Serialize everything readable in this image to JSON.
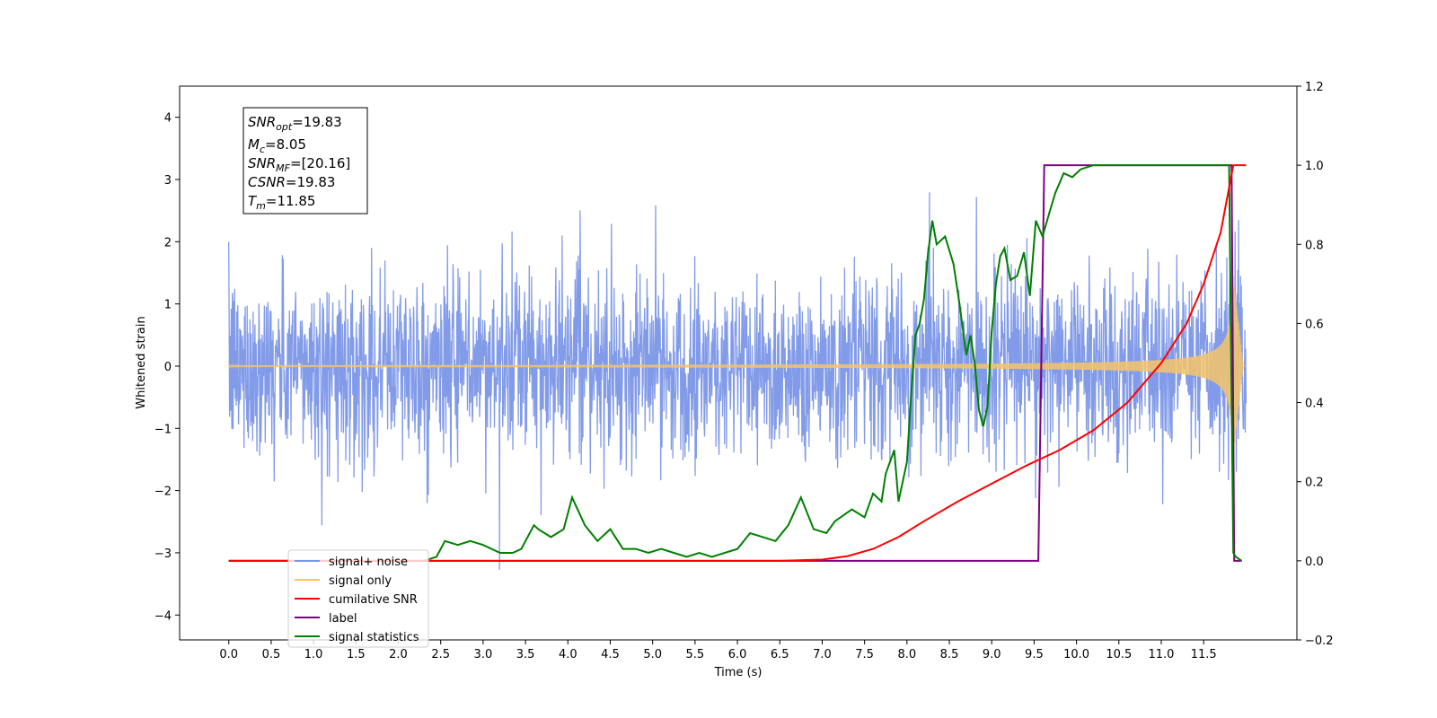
{
  "chart_data": {
    "type": "line",
    "xlabel": "Time (s)",
    "ylabel": "Whitened strain",
    "xlim": [
      -0.58,
      12.6
    ],
    "ylim": [
      -4.4,
      4.5
    ],
    "ylim_right": [
      -0.2,
      1.2
    ],
    "x_ticks": [
      "0.0",
      "0.5",
      "1.0",
      "1.5",
      "2.0",
      "2.5",
      "3.0",
      "3.5",
      "4.0",
      "4.5",
      "5.0",
      "5.5",
      "6.0",
      "6.5",
      "7.0",
      "7.5",
      "8.0",
      "8.5",
      "9.0",
      "9.5",
      "10.0",
      "10.5",
      "11.0",
      "11.5"
    ],
    "y_ticks_left": [
      "−4",
      "−3",
      "−2",
      "−1",
      "0",
      "1",
      "2",
      "3",
      "4"
    ],
    "y_ticks_right": [
      "−0.2",
      "0.0",
      "0.2",
      "0.4",
      "0.6",
      "0.8",
      "1.0",
      "1.2"
    ],
    "grid": false,
    "legend_placement": "lower-left",
    "info_box": {
      "snr_opt": {
        "sym": "SNR",
        "sub": "opt",
        "value": "=19.83"
      },
      "mc": {
        "sym": "M",
        "sub": "c",
        "value": "=8.05"
      },
      "snr_mf": {
        "sym": "SNR",
        "sub": "MF",
        "value": "=[20.16]"
      },
      "csnr": {
        "sym": "CSNR",
        "value": "=19.83"
      },
      "tm": {
        "sym": "T",
        "sub": "m",
        "value": "=11.85"
      }
    },
    "series": [
      {
        "name": "signal+ noise",
        "color": "#7b96e8",
        "axis": "left",
        "noise_std": 0.72,
        "x_range": [
          0,
          12.0
        ]
      },
      {
        "name": "signal only",
        "color": "#f5c469",
        "axis": "left",
        "chirp_end": 11.85
      },
      {
        "name": "cumilative SNR",
        "color": "#ff0000",
        "axis": "right",
        "x": [
          0,
          6.5,
          7.0,
          7.3,
          7.6,
          7.9,
          8.2,
          8.6,
          9.0,
          9.4,
          9.8,
          10.2,
          10.6,
          11.0,
          11.3,
          11.5,
          11.7,
          11.85,
          12.0
        ],
        "y": [
          0,
          0,
          0.003,
          0.012,
          0.03,
          0.06,
          0.1,
          0.15,
          0.195,
          0.24,
          0.28,
          0.33,
          0.4,
          0.5,
          0.6,
          0.7,
          0.83,
          1.0,
          1.0
        ]
      },
      {
        "name": "label",
        "color": "#800080",
        "axis": "right",
        "x": [
          0,
          9.55,
          9.62,
          11.83,
          11.86,
          11.95
        ],
        "y": [
          0,
          0,
          1.0,
          1.0,
          0,
          0
        ]
      },
      {
        "name": "signal statistics",
        "color": "#008000",
        "axis": "right",
        "x": [
          0,
          2.3,
          2.45,
          2.55,
          2.7,
          2.85,
          3.0,
          3.2,
          3.35,
          3.45,
          3.6,
          3.65,
          3.8,
          3.95,
          4.05,
          4.2,
          4.35,
          4.5,
          4.65,
          4.8,
          4.95,
          5.1,
          5.25,
          5.4,
          5.55,
          5.7,
          5.85,
          6.0,
          6.15,
          6.3,
          6.45,
          6.6,
          6.75,
          6.9,
          7.05,
          7.15,
          7.35,
          7.5,
          7.6,
          7.7,
          7.75,
          7.8,
          7.85,
          7.9,
          8.0,
          8.05,
          8.1,
          8.15,
          8.2,
          8.25,
          8.3,
          8.35,
          8.45,
          8.55,
          8.62,
          8.7,
          8.75,
          8.8,
          8.85,
          8.9,
          8.95,
          9.0,
          9.05,
          9.1,
          9.15,
          9.22,
          9.3,
          9.38,
          9.45,
          9.52,
          9.6,
          9.68,
          9.75,
          9.85,
          9.95,
          10.05,
          10.2,
          10.4,
          10.6,
          10.8,
          11.0,
          11.2,
          11.4,
          11.6,
          11.75,
          11.8,
          11.85,
          11.88,
          11.95
        ],
        "y": [
          0,
          0,
          0.01,
          0.05,
          0.04,
          0.05,
          0.04,
          0.02,
          0.02,
          0.03,
          0.09,
          0.08,
          0.06,
          0.08,
          0.16,
          0.09,
          0.05,
          0.08,
          0.03,
          0.03,
          0.02,
          0.03,
          0.02,
          0.01,
          0.02,
          0.01,
          0.02,
          0.03,
          0.07,
          0.06,
          0.05,
          0.09,
          0.16,
          0.08,
          0.07,
          0.1,
          0.13,
          0.11,
          0.17,
          0.15,
          0.22,
          0.25,
          0.28,
          0.15,
          0.25,
          0.42,
          0.57,
          0.6,
          0.66,
          0.78,
          0.86,
          0.8,
          0.82,
          0.75,
          0.65,
          0.52,
          0.57,
          0.5,
          0.38,
          0.34,
          0.39,
          0.58,
          0.7,
          0.77,
          0.79,
          0.71,
          0.72,
          0.78,
          0.67,
          0.86,
          0.82,
          0.88,
          0.93,
          0.98,
          0.97,
          0.99,
          1.0,
          1.0,
          1.0,
          1.0,
          1.0,
          1.0,
          1.0,
          1.0,
          1.0,
          1.0,
          0.02,
          0.01,
          0.0
        ]
      }
    ]
  }
}
